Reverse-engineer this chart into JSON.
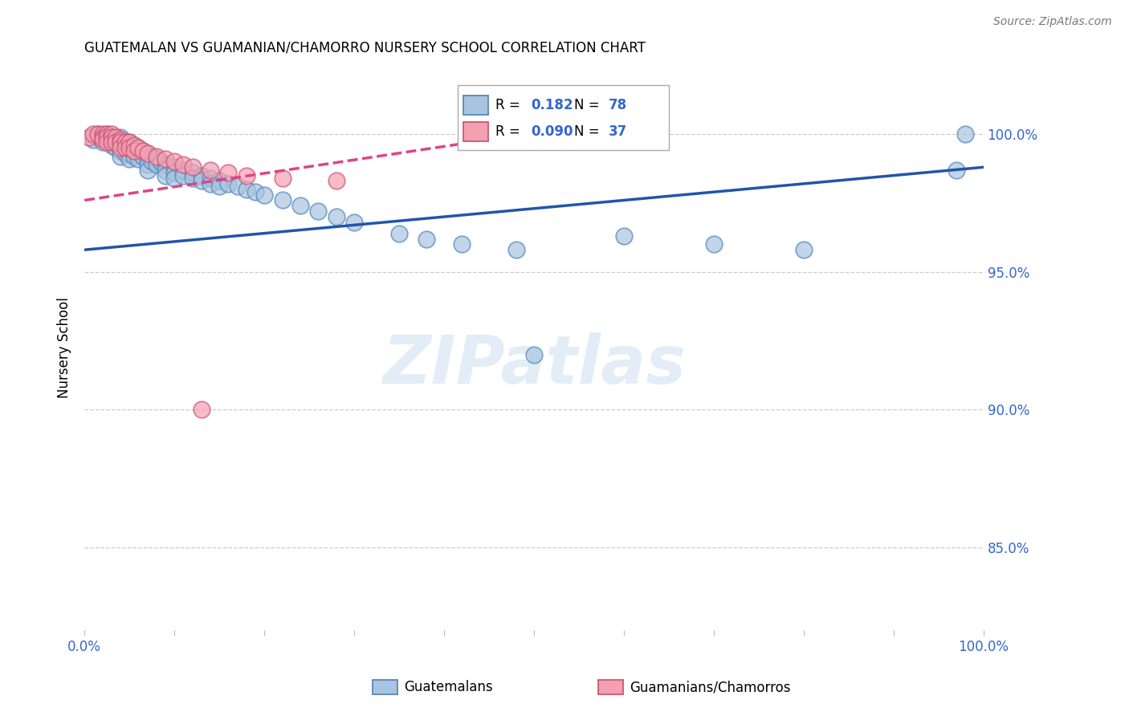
{
  "title": "GUATEMALAN VS GUAMANIAN/CHAMORRO NURSERY SCHOOL CORRELATION CHART",
  "source": "Source: ZipAtlas.com",
  "ylabel": "Nursery School",
  "ytick_labels": [
    "100.0%",
    "95.0%",
    "90.0%",
    "85.0%"
  ],
  "ytick_values": [
    1.0,
    0.95,
    0.9,
    0.85
  ],
  "xlim": [
    0.0,
    1.0
  ],
  "ylim": [
    0.82,
    1.025
  ],
  "blue_R": 0.182,
  "blue_N": 78,
  "pink_R": 0.09,
  "pink_N": 37,
  "blue_color": "#A8C4E0",
  "pink_color": "#F4A0B0",
  "blue_edge": "#5588BB",
  "pink_edge": "#CC5577",
  "trendline_blue": "#2255AA",
  "trendline_pink": "#DD4488",
  "watermark_text": "ZIPatlas",
  "blue_trend": [
    0.0,
    1.0,
    0.958,
    0.988
  ],
  "pink_trend": [
    0.0,
    0.45,
    0.976,
    0.998
  ],
  "blue_scatter_x": [
    0.01,
    0.015,
    0.02,
    0.02,
    0.025,
    0.025,
    0.025,
    0.03,
    0.03,
    0.03,
    0.035,
    0.035,
    0.035,
    0.04,
    0.04,
    0.04,
    0.04,
    0.04,
    0.045,
    0.045,
    0.045,
    0.05,
    0.05,
    0.05,
    0.05,
    0.055,
    0.055,
    0.055,
    0.06,
    0.06,
    0.06,
    0.065,
    0.065,
    0.07,
    0.07,
    0.07,
    0.07,
    0.075,
    0.075,
    0.08,
    0.08,
    0.085,
    0.09,
    0.09,
    0.09,
    0.1,
    0.1,
    0.1,
    0.11,
    0.11,
    0.12,
    0.12,
    0.13,
    0.13,
    0.14,
    0.14,
    0.15,
    0.15,
    0.16,
    0.17,
    0.18,
    0.19,
    0.2,
    0.22,
    0.24,
    0.26,
    0.28,
    0.3,
    0.35,
    0.38,
    0.42,
    0.48,
    0.5,
    0.6,
    0.7,
    0.8,
    0.97,
    0.98
  ],
  "blue_scatter_y": [
    0.998,
    1.0,
    0.997,
    0.999,
    1.0,
    0.999,
    0.998,
    0.999,
    0.997,
    0.996,
    0.999,
    0.997,
    0.995,
    0.998,
    0.996,
    0.994,
    0.992,
    0.999,
    0.997,
    0.995,
    0.993,
    0.997,
    0.995,
    0.993,
    0.991,
    0.996,
    0.994,
    0.992,
    0.995,
    0.993,
    0.991,
    0.994,
    0.992,
    0.993,
    0.991,
    0.989,
    0.987,
    0.992,
    0.99,
    0.991,
    0.989,
    0.99,
    0.989,
    0.987,
    0.985,
    0.988,
    0.986,
    0.984,
    0.987,
    0.985,
    0.986,
    0.984,
    0.985,
    0.983,
    0.984,
    0.982,
    0.983,
    0.981,
    0.982,
    0.981,
    0.98,
    0.979,
    0.978,
    0.976,
    0.974,
    0.972,
    0.97,
    0.968,
    0.964,
    0.962,
    0.96,
    0.958,
    0.92,
    0.963,
    0.96,
    0.958,
    0.987,
    1.0
  ],
  "pink_scatter_x": [
    0.005,
    0.01,
    0.015,
    0.02,
    0.02,
    0.02,
    0.025,
    0.025,
    0.025,
    0.03,
    0.03,
    0.03,
    0.035,
    0.035,
    0.04,
    0.04,
    0.04,
    0.045,
    0.045,
    0.05,
    0.05,
    0.055,
    0.055,
    0.06,
    0.065,
    0.07,
    0.08,
    0.09,
    0.1,
    0.11,
    0.12,
    0.14,
    0.16,
    0.18,
    0.22,
    0.28,
    0.13
  ],
  "pink_scatter_y": [
    0.999,
    1.0,
    1.0,
    1.0,
    0.999,
    0.998,
    1.0,
    0.999,
    0.997,
    1.0,
    0.999,
    0.997,
    0.999,
    0.997,
    0.998,
    0.997,
    0.995,
    0.997,
    0.995,
    0.997,
    0.995,
    0.996,
    0.994,
    0.995,
    0.994,
    0.993,
    0.992,
    0.991,
    0.99,
    0.989,
    0.988,
    0.987,
    0.986,
    0.985,
    0.984,
    0.983,
    0.9
  ]
}
